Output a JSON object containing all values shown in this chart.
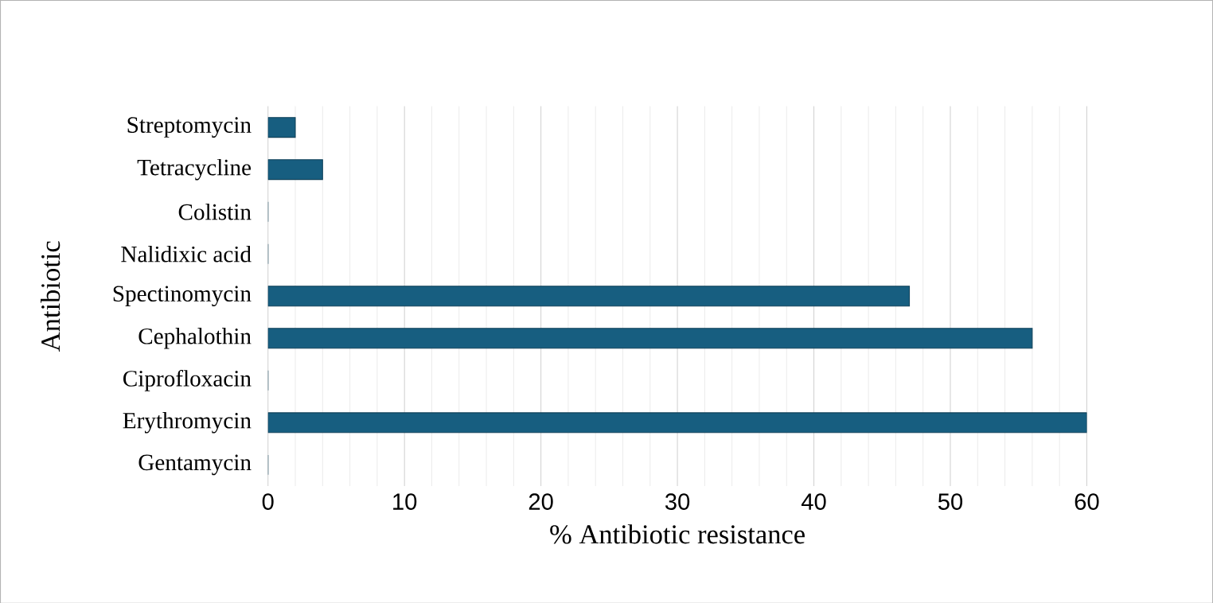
{
  "chart_data": {
    "type": "bar",
    "orientation": "horizontal",
    "categories": [
      "Streptomycin",
      "Tetracycline",
      "Colistin",
      "Nalidixic acid",
      "Spectinomycin",
      "Cephalothin",
      "Ciprofloxacin",
      "Erythromycin",
      "Gentamycin"
    ],
    "values": [
      2,
      4,
      0,
      0,
      47,
      56,
      0,
      60,
      0
    ],
    "color": "#175e80",
    "xlim": [
      0,
      60
    ],
    "xticks": [
      0,
      10,
      20,
      30,
      40,
      50,
      60
    ],
    "xlabel": "% Antibiotic resistance",
    "ylabel": "Antibiotic",
    "grid": "x"
  }
}
